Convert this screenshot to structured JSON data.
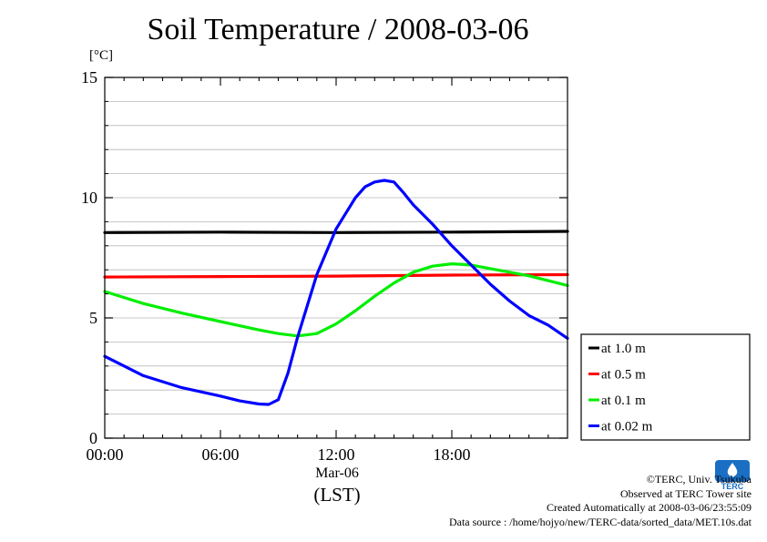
{
  "chart_data": {
    "type": "line",
    "title": "Soil Temperature / 2008-03-06",
    "ylabel": "[°C]",
    "xlabel": "(LST)",
    "x_date_label": "Mar-06",
    "xlim_hours": [
      0,
      24
    ],
    "ylim": [
      0,
      15
    ],
    "y_ticks": [
      0,
      5,
      10,
      15
    ],
    "y_minor_step": 1,
    "x_ticks": [
      {
        "hour": 0,
        "label": "00:00"
      },
      {
        "hour": 6,
        "label": "06:00"
      },
      {
        "hour": 12,
        "label": "12:00"
      },
      {
        "hour": 18,
        "label": "18:00"
      }
    ],
    "grid": true,
    "legend_position": "right-bottom",
    "series": [
      {
        "name": "at 1.0 m",
        "color": "#000000",
        "x": [
          0,
          6,
          12,
          18,
          24
        ],
        "y": [
          8.55,
          8.57,
          8.55,
          8.57,
          8.6
        ]
      },
      {
        "name": "at 0.5 m",
        "color": "#ff0000",
        "x": [
          0,
          6,
          12,
          18,
          24
        ],
        "y": [
          6.7,
          6.72,
          6.74,
          6.78,
          6.8
        ]
      },
      {
        "name": "at 0.1 m",
        "color": "#00ee00",
        "x": [
          0,
          2,
          4,
          6,
          8,
          9,
          10,
          11,
          12,
          13,
          14,
          15,
          16,
          17,
          18,
          19,
          20,
          21,
          22,
          23,
          24
        ],
        "y": [
          6.1,
          5.6,
          5.2,
          4.85,
          4.5,
          4.35,
          4.25,
          4.35,
          4.75,
          5.3,
          5.9,
          6.45,
          6.9,
          7.15,
          7.25,
          7.2,
          7.05,
          6.9,
          6.75,
          6.55,
          6.35
        ]
      },
      {
        "name": "at 0.02 m",
        "color": "#0000ff",
        "x": [
          0,
          1,
          2,
          4,
          6,
          7,
          8,
          8.5,
          9,
          9.5,
          10,
          11,
          12,
          13,
          13.5,
          14,
          14.5,
          15,
          15.5,
          16,
          17,
          18,
          19,
          20,
          21,
          22,
          23,
          24
        ],
        "y": [
          3.4,
          3.0,
          2.6,
          2.1,
          1.75,
          1.55,
          1.42,
          1.4,
          1.6,
          2.7,
          4.2,
          6.8,
          8.7,
          10.0,
          10.45,
          10.65,
          10.72,
          10.65,
          10.2,
          9.7,
          8.9,
          8.0,
          7.2,
          6.4,
          5.7,
          5.1,
          4.7,
          4.15
        ]
      }
    ]
  },
  "footer": {
    "copyright": "©TERC, Univ. Tsukuba",
    "observed": "Observed at TERC Tower site",
    "created": "Created Automatically at 2008-03-06/23:55:09",
    "source": "Data source : /home/hojyo/new/TERC-data/sorted_data/MET.10s.dat"
  },
  "logo": {
    "text": "TERC",
    "color": "#1a6fc4"
  }
}
